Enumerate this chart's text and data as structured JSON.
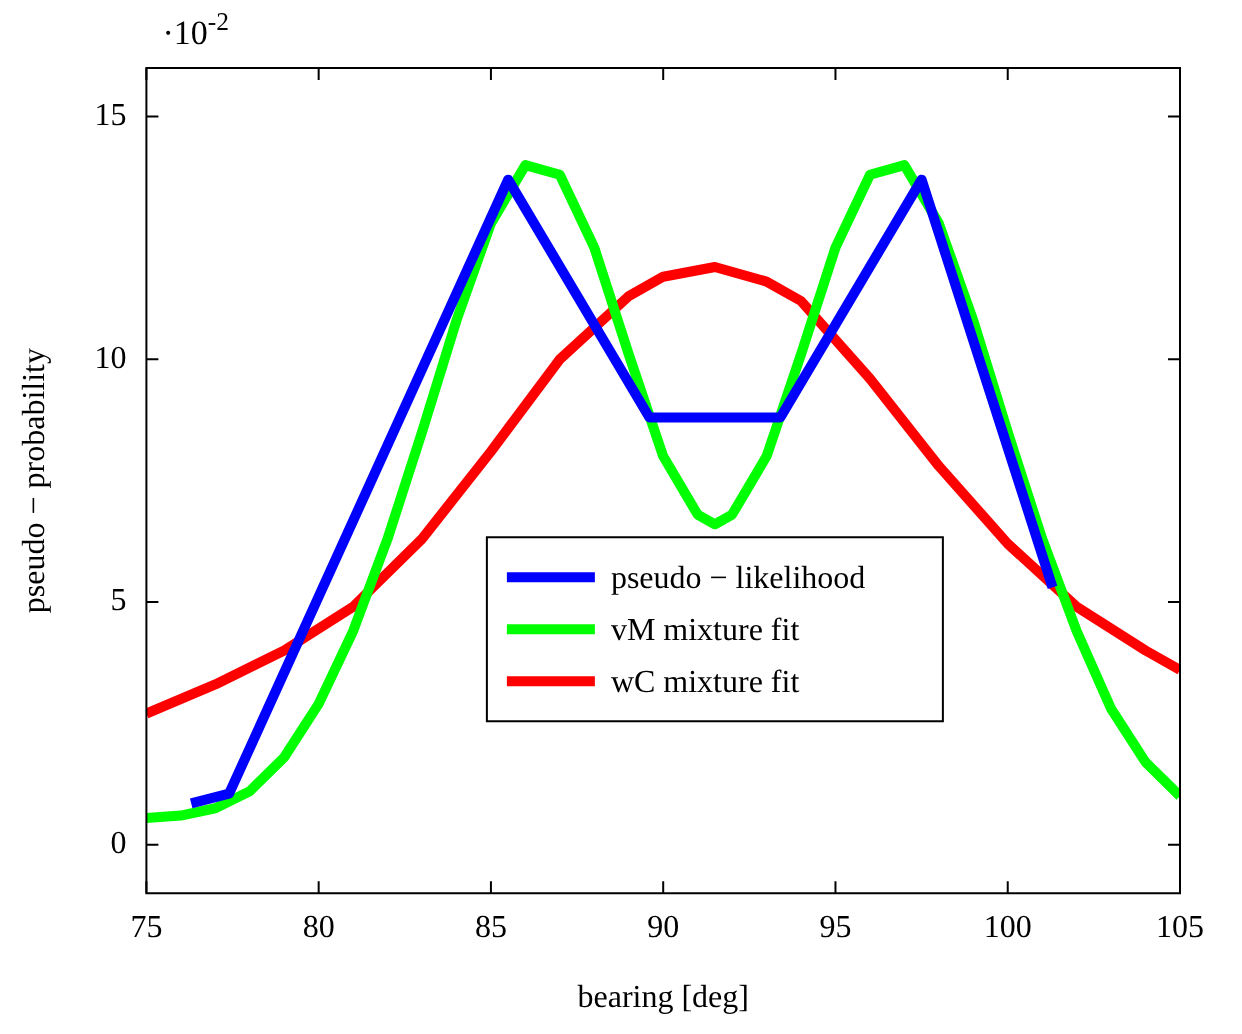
{
  "chart_data": {
    "type": "line",
    "xlabel": "bearing [deg]",
    "ylabel": "pseudo − probability",
    "annotations": [
      "·10$^{-2}$"
    ],
    "xlim": [
      75,
      105
    ],
    "xticks": [
      75,
      80,
      85,
      90,
      95,
      100,
      105
    ],
    "ylim": [
      -1,
      16
    ],
    "yticks": [
      0,
      5,
      10,
      15
    ],
    "grid": false,
    "legend": "center",
    "marker": "none",
    "line_style": "solid",
    "series": [
      {
        "name": "pseudo − likelihood",
        "color": "#0000ff",
        "x": [
          76.3,
          77.4,
          85.5,
          89.6,
          93.4,
          97.5,
          101.3
        ],
        "values": [
          0.85,
          1.05,
          13.7,
          8.8,
          8.8,
          13.7,
          5.3
        ]
      },
      {
        "name": "vM mixture fit",
        "color": "#00ff00",
        "x": [
          75,
          76,
          77,
          78,
          79,
          80,
          81,
          82,
          83,
          84,
          85,
          86,
          87,
          88,
          89,
          90,
          91,
          91.5,
          92,
          93,
          94,
          95,
          96,
          97,
          98,
          99,
          100,
          101,
          102,
          103,
          104,
          105
        ],
        "values": [
          0.55,
          0.6,
          0.75,
          1.1,
          1.8,
          2.9,
          4.4,
          6.3,
          8.5,
          10.8,
          12.8,
          14.0,
          13.8,
          12.3,
          10.1,
          8.0,
          6.8,
          6.6,
          6.8,
          8.0,
          10.1,
          12.3,
          13.8,
          14.0,
          12.8,
          10.8,
          8.5,
          6.3,
          4.4,
          2.8,
          1.7,
          1.0
        ]
      },
      {
        "name": "wC mixture fit",
        "color": "#ff0000",
        "x": [
          75,
          77,
          79,
          81,
          83,
          85,
          87,
          89,
          90,
          91.5,
          93,
          94,
          96,
          98,
          100,
          102,
          104,
          105
        ],
        "values": [
          2.7,
          3.3,
          4.0,
          4.9,
          6.3,
          8.1,
          10.0,
          11.3,
          11.7,
          11.9,
          11.6,
          11.2,
          9.6,
          7.8,
          6.2,
          4.9,
          4.0,
          3.6
        ]
      }
    ]
  }
}
